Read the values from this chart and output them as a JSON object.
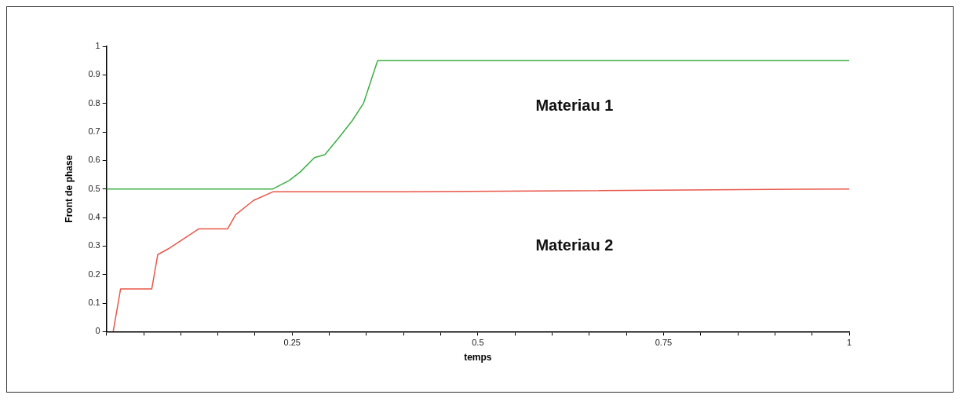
{
  "chart_data": {
    "type": "line",
    "xlabel": "temps",
    "ylabel": "Front de phase",
    "annotations": [
      "Materiau 1",
      "Materiau 2"
    ],
    "series": [
      {
        "color": "#3cb043",
        "x": [
          0,
          0.224,
          0.246,
          0.261,
          0.28,
          0.294,
          0.313,
          0.331,
          0.346,
          0.365,
          1
        ],
        "values": [
          0.5,
          0.5,
          0.53,
          0.56,
          0.61,
          0.62,
          0.68,
          0.74,
          0.8,
          0.95,
          0.95
        ]
      },
      {
        "color": "#e8574a",
        "x": [
          0.009,
          0.019,
          0.061,
          0.069,
          0.083,
          0.124,
          0.163,
          0.174,
          0.198,
          0.224,
          0.4,
          1
        ],
        "values": [
          0,
          0.15,
          0.15,
          0.27,
          0.29,
          0.36,
          0.36,
          0.41,
          0.46,
          0.49,
          0.49,
          0.5
        ]
      }
    ],
    "xlim": [
      0,
      1
    ],
    "ylim": [
      0,
      1
    ],
    "xticks": [
      {
        "value": 0,
        "label": null
      },
      {
        "value": 0.05,
        "label": null
      },
      {
        "value": 0.1,
        "label": null
      },
      {
        "value": 0.15,
        "label": null
      },
      {
        "value": 0.2,
        "label": null
      },
      0.25,
      {
        "value": 0.3,
        "label": null
      },
      {
        "value": 0.35,
        "label": null
      },
      {
        "value": 0.4,
        "label": null
      },
      {
        "value": 0.45,
        "label": null
      },
      0.5,
      {
        "value": 0.55,
        "label": null
      },
      {
        "value": 0.6,
        "label": null
      },
      {
        "value": 0.65,
        "label": null
      },
      {
        "value": 0.7,
        "label": null
      },
      0.75,
      {
        "value": 0.8,
        "label": null
      },
      {
        "value": 0.85,
        "label": null
      },
      {
        "value": 0.9,
        "label": null
      },
      {
        "value": 0.95,
        "label": null
      },
      1
    ],
    "yticks": [
      0,
      0.1,
      0.2,
      0.3,
      0.4,
      0.5,
      0.6,
      0.7,
      0.8,
      0.9,
      1
    ],
    "grid": false,
    "legend": false,
    "marker": "none",
    "line_style": "solid"
  }
}
